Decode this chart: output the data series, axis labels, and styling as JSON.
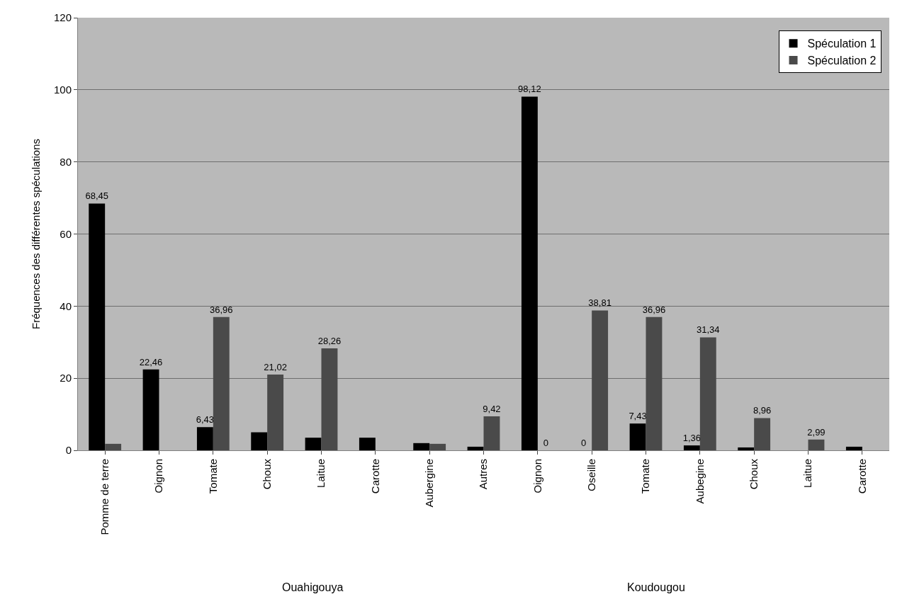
{
  "chart_data": {
    "type": "bar",
    "ylabel": "Fréquences des différentes spéculations",
    "categories": [
      "Pomme de terre",
      "Oignon",
      "Tomate",
      "Choux",
      "Laitue",
      "Carotte",
      "Aubergine",
      "Autres",
      "Oignon",
      "Oseille",
      "Tomate",
      "Aubegine",
      "Choux",
      "Laitue",
      "Carotte"
    ],
    "series": [
      {
        "name": "Spéculation 1",
        "color": "#000000",
        "values": [
          68.45,
          22.46,
          6.43,
          5,
          3.5,
          3.5,
          2,
          1,
          98.12,
          0,
          7.43,
          1.36,
          0.8,
          null,
          1
        ],
        "value_labels": [
          "68,45",
          "22,46",
          "6,43",
          null,
          null,
          null,
          null,
          null,
          "98,12",
          "0",
          "7,43",
          "1,36",
          null,
          null,
          null
        ]
      },
      {
        "name": "Spéculation 2",
        "color": "#4a4a4a",
        "values": [
          1.8,
          null,
          36.96,
          21.02,
          28.26,
          null,
          1.8,
          9.42,
          0,
          38.81,
          36.96,
          31.34,
          8.96,
          2.99,
          null
        ],
        "value_labels": [
          null,
          null,
          "36,96",
          "21,02",
          "28,26",
          null,
          null,
          "9,42",
          "0",
          "38,81",
          "36,96",
          "31,34",
          "8,96",
          "2,99",
          null
        ]
      }
    ],
    "annotations": [
      "Ouahigouya",
      "Koudougou"
    ],
    "ylim": [
      0,
      120
    ],
    "yticks": [
      0,
      20,
      40,
      60,
      80,
      100,
      120
    ],
    "grid": "y",
    "legend": "top right"
  }
}
